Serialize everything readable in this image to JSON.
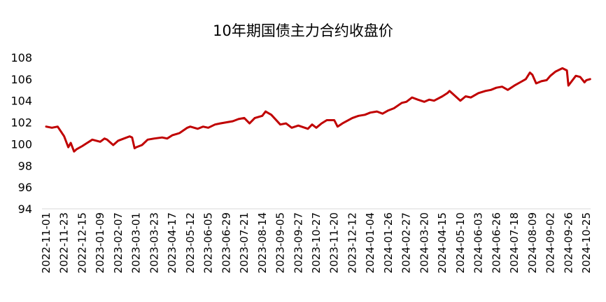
{
  "chart_data": {
    "type": "line",
    "title": "10年期国债主力合约收盘价",
    "xlabel": "",
    "ylabel": "",
    "ylim": [
      94,
      108
    ],
    "yticks": [
      94,
      96,
      98,
      100,
      102,
      104,
      106,
      108
    ],
    "grid": false,
    "legend": "none",
    "x_tick_labels": [
      "2022-11-01",
      "2022-11-23",
      "2022-12-15",
      "2023-01-09",
      "2023-02-07",
      "2023-03-01",
      "2023-03-23",
      "2023-04-17",
      "2023-05-12",
      "2023-06-05",
      "2023-06-29",
      "2023-07-21",
      "2023-08-14",
      "2023-09-05",
      "2023-09-27",
      "2023-10-27",
      "2023-11-20",
      "2023-12-12",
      "2024-01-04",
      "2024-01-26",
      "2024-02-27",
      "2024-03-20",
      "2024-04-15",
      "2024-05-10",
      "2024-06-03",
      "2024-06-26",
      "2024-07-18",
      "2024-08-09",
      "2024-09-02",
      "2024-09-26",
      "2024-10-25"
    ],
    "series": [
      {
        "color": "#c00000",
        "x": [
          "2022-11-01",
          "2022-11-08",
          "2022-11-15",
          "2022-11-23",
          "2022-11-28",
          "2022-12-01",
          "2022-12-05",
          "2022-12-08",
          "2022-12-15",
          "2022-12-22",
          "2022-12-29",
          "2023-01-09",
          "2023-01-16",
          "2023-01-20",
          "2023-01-30",
          "2023-02-07",
          "2023-02-14",
          "2023-02-21",
          "2023-02-24",
          "2023-02-27",
          "2023-03-01",
          "2023-03-08",
          "2023-03-15",
          "2023-03-23",
          "2023-04-03",
          "2023-04-10",
          "2023-04-17",
          "2023-04-27",
          "2023-05-08",
          "2023-05-12",
          "2023-05-22",
          "2023-05-29",
          "2023-06-05",
          "2023-06-14",
          "2023-06-21",
          "2023-06-29",
          "2023-07-07",
          "2023-07-14",
          "2023-07-21",
          "2023-07-28",
          "2023-08-04",
          "2023-08-14",
          "2023-08-18",
          "2023-08-25",
          "2023-09-05",
          "2023-09-12",
          "2023-09-19",
          "2023-09-27",
          "2023-10-13",
          "2023-10-20",
          "2023-10-27",
          "2023-11-03",
          "2023-11-10",
          "2023-11-20",
          "2023-11-24",
          "2023-11-30",
          "2023-12-12",
          "2023-12-20",
          "2023-12-28",
          "2024-01-04",
          "2024-01-12",
          "2024-01-19",
          "2024-01-26",
          "2024-02-05",
          "2024-02-19",
          "2024-02-27",
          "2024-03-05",
          "2024-03-12",
          "2024-03-20",
          "2024-03-27",
          "2024-04-03",
          "2024-04-15",
          "2024-04-22",
          "2024-04-25",
          "2024-05-10",
          "2024-05-17",
          "2024-05-24",
          "2024-06-03",
          "2024-06-12",
          "2024-06-19",
          "2024-06-26",
          "2024-07-03",
          "2024-07-10",
          "2024-07-18",
          "2024-07-25",
          "2024-08-01",
          "2024-08-06",
          "2024-08-09",
          "2024-08-14",
          "2024-08-21",
          "2024-08-28",
          "2024-09-02",
          "2024-09-09",
          "2024-09-18",
          "2024-09-24",
          "2024-09-26",
          "2024-10-08",
          "2024-10-15",
          "2024-10-22",
          "2024-10-25",
          "2024-10-31"
        ],
        "values": [
          101.6,
          101.5,
          101.6,
          100.7,
          99.7,
          100.1,
          99.3,
          99.5,
          99.8,
          100.1,
          100.4,
          100.2,
          100.5,
          100.4,
          99.9,
          100.3,
          100.5,
          100.7,
          100.6,
          99.6,
          99.7,
          99.9,
          100.4,
          100.5,
          100.6,
          100.5,
          100.8,
          101.0,
          101.5,
          101.6,
          101.4,
          101.6,
          101.5,
          101.8,
          101.9,
          102.0,
          102.1,
          102.3,
          102.4,
          101.9,
          102.4,
          102.6,
          103.0,
          102.7,
          101.8,
          101.9,
          101.5,
          101.7,
          101.4,
          101.8,
          101.5,
          101.9,
          102.2,
          102.2,
          101.6,
          101.9,
          102.4,
          102.6,
          102.7,
          102.9,
          103.0,
          102.8,
          103.1,
          103.3,
          103.8,
          103.9,
          104.3,
          104.1,
          103.9,
          104.1,
          104.0,
          104.4,
          104.7,
          104.9,
          104.0,
          104.4,
          104.3,
          104.7,
          104.9,
          105.0,
          105.2,
          105.3,
          105.0,
          105.4,
          105.7,
          106.0,
          106.6,
          106.4,
          105.6,
          105.8,
          105.9,
          106.3,
          106.7,
          107.0,
          106.8,
          105.4,
          106.3,
          106.2,
          105.7,
          105.9,
          106.0
        ]
      }
    ]
  }
}
